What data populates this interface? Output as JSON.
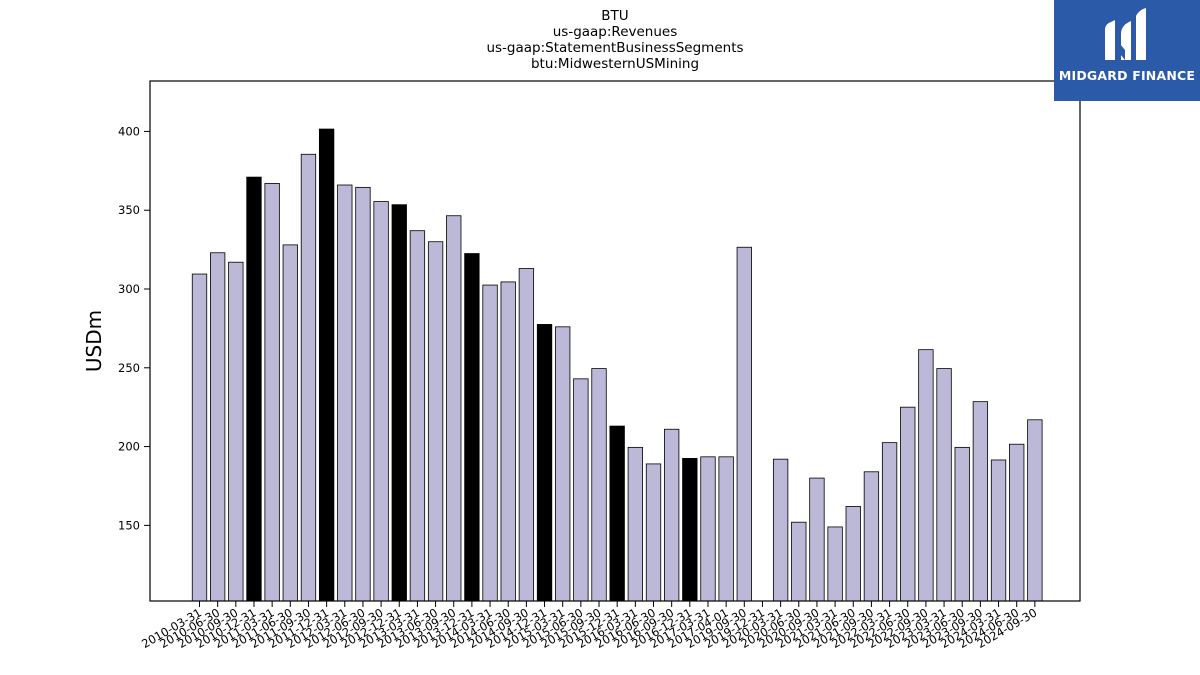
{
  "logo": {
    "text": "MIDGARD FINANCE",
    "icon": "midgard-logo-icon",
    "bg_color": "#2b5aa8"
  },
  "colors": {
    "bar_normal": "#bcb9d8",
    "bar_highlight": "#000000",
    "bar_edge": "#000000"
  },
  "chart_data": {
    "type": "bar",
    "title_lines": [
      "BTU",
      "us-gaap:Revenues",
      "us-gaap:StatementBusinessSegments",
      "btu:MidwesternUSMining"
    ],
    "xlabel": "",
    "ylabel": "USDm",
    "ylim": [
      102,
      432
    ],
    "yticks": [
      150,
      200,
      250,
      300,
      350,
      400
    ],
    "grid": false,
    "legend": "none",
    "categories": [
      "2010-03-31",
      "2010-06-30",
      "2010-09-30",
      "2010-12-31",
      "2011-03-31",
      "2011-06-30",
      "2011-09-30",
      "2011-12-31",
      "2012-03-31",
      "2012-06-30",
      "2012-09-30",
      "2012-12-31",
      "2013-03-31",
      "2013-06-30",
      "2013-09-30",
      "2013-12-31",
      "2014-03-31",
      "2014-06-30",
      "2014-09-30",
      "2014-12-31",
      "2015-03-31",
      "2015-06-30",
      "2015-09-30",
      "2015-12-31",
      "2016-03-31",
      "2016-06-30",
      "2016-09-30",
      "2016-12-31",
      "2017-03-31",
      "2017-04-01",
      "2019-09-30",
      "2019-12-31",
      "2020-03-31",
      "2020-06-30",
      "2020-09-30",
      "2021-03-31",
      "2021-06-30",
      "2021-09-30",
      "2022-03-31",
      "2022-06-30",
      "2022-09-30",
      "2023-03-31",
      "2023-06-30",
      "2023-09-30",
      "2024-03-31",
      "2024-06-30",
      "2024-09-30"
    ],
    "values": [
      309.5,
      323,
      317,
      371,
      367,
      328,
      385.5,
      401.5,
      366,
      364.5,
      355.5,
      353.5,
      337,
      330,
      346.5,
      322.5,
      302.5,
      304.5,
      313,
      277.5,
      276,
      243,
      249.5,
      213,
      199.5,
      189,
      211,
      192.5,
      193.5,
      193.5,
      326.5,
      null,
      192,
      152,
      180,
      149,
      162,
      184,
      202.5,
      225,
      261.5,
      249.5,
      199.5,
      228.5,
      191.5,
      201.5,
      217
    ],
    "highlighted": [
      false,
      false,
      false,
      true,
      false,
      false,
      false,
      true,
      false,
      false,
      false,
      true,
      false,
      false,
      false,
      true,
      false,
      false,
      false,
      true,
      false,
      false,
      false,
      true,
      false,
      false,
      false,
      true,
      false,
      false,
      false,
      false,
      false,
      false,
      false,
      false,
      false,
      false,
      false,
      false,
      false,
      false,
      false,
      false,
      false,
      false,
      false
    ]
  }
}
